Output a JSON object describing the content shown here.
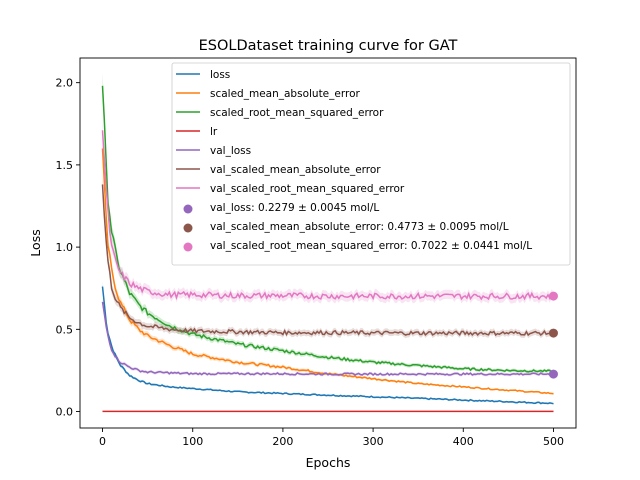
{
  "chart_data": {
    "type": "line",
    "title": "ESOLDataset training curve for GAT",
    "xlabel": "Epochs",
    "ylabel": "Loss",
    "xlim": [
      -25,
      525
    ],
    "ylim": [
      -0.1,
      2.15
    ],
    "xticks": [
      0,
      100,
      200,
      300,
      400,
      500
    ],
    "yticks": [
      0.0,
      0.5,
      1.0,
      1.5,
      2.0
    ],
    "xtick_labels": [
      "0",
      "100",
      "200",
      "300",
      "400",
      "500"
    ],
    "ytick_labels": [
      "0.0",
      "0.5",
      "1.0",
      "1.5",
      "2.0"
    ],
    "grid": false,
    "legend_position": "top-right",
    "series": [
      {
        "name": "loss",
        "color": "#1f77b4",
        "x": [
          0,
          5,
          10,
          15,
          20,
          30,
          40,
          50,
          75,
          100,
          150,
          200,
          250,
          300,
          350,
          400,
          450,
          500
        ],
        "y": [
          0.76,
          0.5,
          0.4,
          0.33,
          0.28,
          0.22,
          0.19,
          0.17,
          0.15,
          0.14,
          0.12,
          0.11,
          0.1,
          0.09,
          0.08,
          0.07,
          0.06,
          0.05
        ]
      },
      {
        "name": "scaled_mean_absolute_error",
        "color": "#ff7f0e",
        "x": [
          0,
          5,
          10,
          15,
          20,
          30,
          40,
          50,
          75,
          100,
          150,
          200,
          250,
          300,
          350,
          400,
          450,
          500
        ],
        "y": [
          1.59,
          1.05,
          0.86,
          0.74,
          0.66,
          0.56,
          0.5,
          0.46,
          0.4,
          0.35,
          0.3,
          0.27,
          0.23,
          0.2,
          0.17,
          0.15,
          0.13,
          0.11
        ]
      },
      {
        "name": "scaled_root_mean_squared_error",
        "color": "#2ca02c",
        "x": [
          0,
          5,
          10,
          15,
          20,
          30,
          40,
          50,
          75,
          100,
          150,
          200,
          250,
          300,
          350,
          400,
          450,
          500
        ],
        "y": [
          2.0,
          1.35,
          1.1,
          0.95,
          0.85,
          0.72,
          0.65,
          0.6,
          0.52,
          0.47,
          0.41,
          0.37,
          0.33,
          0.3,
          0.28,
          0.26,
          0.25,
          0.245
        ]
      },
      {
        "name": "lr",
        "color": "#d62728",
        "x": [
          0,
          500
        ],
        "y": [
          0.001,
          0.001
        ]
      },
      {
        "name": "val_loss",
        "color": "#9467bd",
        "x": [
          0,
          5,
          10,
          15,
          20,
          30,
          40,
          50,
          75,
          100,
          150,
          200,
          250,
          300,
          350,
          400,
          450,
          500
        ],
        "y": [
          0.66,
          0.48,
          0.38,
          0.33,
          0.3,
          0.27,
          0.25,
          0.24,
          0.235,
          0.23,
          0.23,
          0.23,
          0.228,
          0.228,
          0.228,
          0.228,
          0.228,
          0.228
        ]
      },
      {
        "name": "val_scaled_mean_absolute_error",
        "color": "#8c564b",
        "x": [
          0,
          5,
          10,
          15,
          20,
          30,
          40,
          50,
          75,
          100,
          150,
          200,
          250,
          300,
          350,
          400,
          450,
          500
        ],
        "y": [
          1.37,
          0.95,
          0.76,
          0.68,
          0.63,
          0.57,
          0.54,
          0.52,
          0.5,
          0.49,
          0.485,
          0.48,
          0.48,
          0.478,
          0.477,
          0.477,
          0.477,
          0.477
        ]
      },
      {
        "name": "val_scaled_root_mean_squared_error",
        "color": "#e377c2",
        "x": [
          0,
          5,
          10,
          15,
          20,
          30,
          40,
          50,
          75,
          100,
          150,
          200,
          250,
          300,
          350,
          400,
          450,
          500
        ],
        "y": [
          1.73,
          1.25,
          1.0,
          0.9,
          0.84,
          0.78,
          0.75,
          0.73,
          0.71,
          0.71,
          0.705,
          0.705,
          0.702,
          0.702,
          0.702,
          0.702,
          0.702,
          0.702
        ]
      }
    ],
    "final_points": [
      {
        "name": "val_loss: 0.2279 ± 0.0045 mol/L",
        "color": "#9467bd",
        "x": 500,
        "y": 0.2279
      },
      {
        "name": "val_scaled_mean_absolute_error: 0.4773 ± 0.0095 mol/L",
        "color": "#8c564b",
        "x": 500,
        "y": 0.4773
      },
      {
        "name": "val_scaled_root_mean_squared_error: 0.7022 ± 0.0441 mol/L",
        "color": "#e377c2",
        "x": 500,
        "y": 0.7022
      }
    ]
  }
}
